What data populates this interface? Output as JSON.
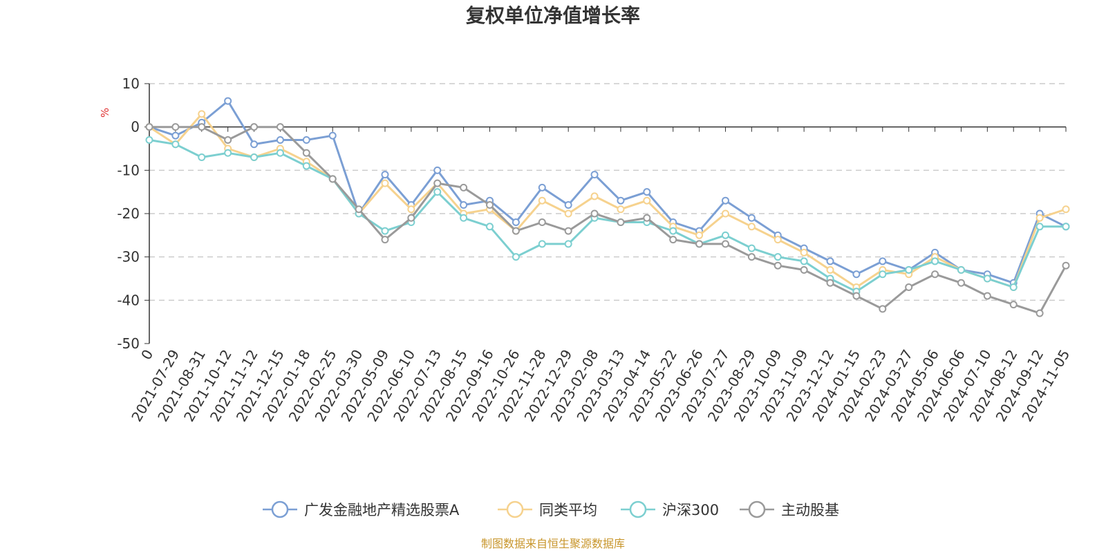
{
  "chart_data": {
    "type": "line",
    "title": "复权单位净值增长率",
    "ylabel": "%",
    "xlabel": "",
    "ylim": [
      -50,
      10
    ],
    "yticks": [
      10,
      0,
      -10,
      -20,
      -30,
      -40,
      -50
    ],
    "grid": true,
    "legend_position": "bottom",
    "source_note": "制图数据来自恒生聚源数据库",
    "x": [
      "0",
      "2021-07-29",
      "2021-08-31",
      "2021-10-12",
      "2021-11-12",
      "2021-12-15",
      "2022-01-18",
      "2022-02-25",
      "2022-03-30",
      "2022-05-09",
      "2022-06-10",
      "2022-07-13",
      "2022-08-15",
      "2022-09-16",
      "2022-10-26",
      "2022-11-28",
      "2022-12-29",
      "2023-02-08",
      "2023-03-13",
      "2023-04-14",
      "2023-05-22",
      "2023-06-26",
      "2023-07-27",
      "2023-08-29",
      "2023-10-09",
      "2023-11-09",
      "2023-12-12",
      "2024-01-15",
      "2024-02-23",
      "2024-03-27",
      "2024-05-06",
      "2024-06-06",
      "2024-07-10",
      "2024-08-12",
      "2024-09-12",
      "2024-11-05"
    ],
    "series": [
      {
        "name": "广发金融地产精选股票A",
        "color": "#7b9fd4",
        "values": [
          0,
          -2,
          1,
          6,
          -4,
          -3,
          -3,
          -2,
          -20,
          -11,
          -18,
          -10,
          -18,
          -17,
          -22,
          -14,
          -18,
          -11,
          -17,
          -15,
          -22,
          -24,
          -17,
          -21,
          -25,
          -28,
          -31,
          -34,
          -31,
          -33,
          -29,
          -33,
          -34,
          -36,
          -20,
          -23
        ]
      },
      {
        "name": "同类平均",
        "color": "#f6d28e",
        "values": [
          0,
          -4,
          3,
          -5,
          -7,
          -5,
          -8,
          -12,
          -20,
          -13,
          -19,
          -13,
          -20,
          -19,
          -24,
          -17,
          -20,
          -16,
          -19,
          -17,
          -23,
          -25,
          -20,
          -23,
          -26,
          -29,
          -33,
          -37,
          -33,
          -34,
          -30,
          -33,
          -35,
          -37,
          -21,
          -19
        ]
      },
      {
        "name": "沪深300",
        "color": "#7ccfd0",
        "values": [
          -3,
          -4,
          -7,
          -6,
          -7,
          -6,
          -9,
          -12,
          -20,
          -24,
          -22,
          -15,
          -21,
          -23,
          -30,
          -27,
          -27,
          -21,
          -22,
          -22,
          -24,
          -27,
          -25,
          -28,
          -30,
          -31,
          -35,
          -38,
          -34,
          -33,
          -31,
          -33,
          -35,
          -37,
          -23,
          -23
        ]
      },
      {
        "name": "主动股基",
        "color": "#9a9a9a",
        "values": [
          0,
          0,
          0,
          -3,
          0,
          0,
          -6,
          -12,
          -19,
          -26,
          -21,
          -13,
          -14,
          -18,
          -24,
          -22,
          -24,
          -20,
          -22,
          -21,
          -26,
          -27,
          -27,
          -30,
          -32,
          -33,
          -36,
          -39,
          -42,
          -37,
          -34,
          -36,
          -39,
          -41,
          -43,
          -32
        ]
      }
    ]
  }
}
